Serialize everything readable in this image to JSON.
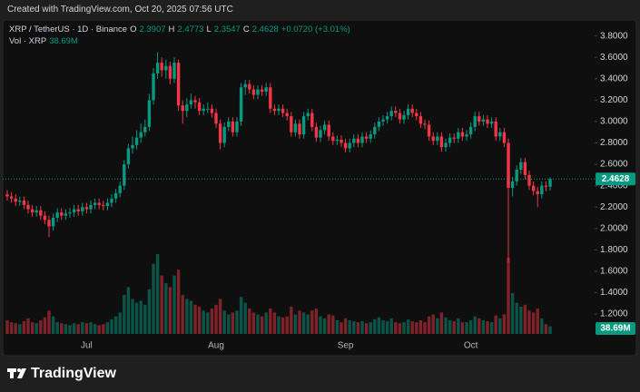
{
  "watermark": "Created with TradingView.com, Oct 20, 2025 07:56 UTC",
  "logo": "TradingView",
  "chart_data": {
    "type": "candlestick",
    "symbol": "XRP / TetherUS · 1D · Binance",
    "ohlc_labels": [
      "O",
      "H",
      "L",
      "C"
    ],
    "change": "+0.0720 (+3.01%)",
    "volume_title": "Vol · XRP",
    "volume_label": "38.69M",
    "up_color": "#089981",
    "down_color": "#f23645",
    "grid": false,
    "ylim": [
      0.98,
      3.95
    ],
    "yticks": [
      {
        "value": 3.8,
        "label": "3.8000"
      },
      {
        "value": 3.6,
        "label": "3.6000"
      },
      {
        "value": 3.4,
        "label": "3.4000"
      },
      {
        "value": 3.2,
        "label": "3.2000"
      },
      {
        "value": 3.0,
        "label": "3.0000"
      },
      {
        "value": 2.8,
        "label": "2.8000"
      },
      {
        "value": 2.6,
        "label": "2.6000"
      },
      {
        "value": 2.4,
        "label": "2.4000"
      },
      {
        "value": 2.2,
        "label": "2.2000"
      },
      {
        "value": 2.0,
        "label": "2.0000"
      },
      {
        "value": 1.8,
        "label": "1.8000"
      },
      {
        "value": 1.6,
        "label": "1.6000"
      },
      {
        "value": 1.4,
        "label": "1.4000"
      },
      {
        "value": 1.2,
        "label": "1.2000"
      }
    ],
    "categories": [
      null,
      null,
      null,
      null,
      null,
      null,
      null,
      null,
      null,
      null,
      null,
      null,
      null,
      null,
      null,
      null,
      null,
      null,
      null,
      "Jul",
      null,
      null,
      null,
      null,
      null,
      null,
      null,
      null,
      null,
      null,
      null,
      null,
      null,
      null,
      null,
      null,
      null,
      null,
      null,
      null,
      null,
      null,
      null,
      null,
      null,
      null,
      null,
      null,
      null,
      null,
      "Aug",
      null,
      null,
      null,
      null,
      null,
      null,
      null,
      null,
      null,
      null,
      null,
      null,
      null,
      null,
      null,
      null,
      null,
      null,
      null,
      null,
      null,
      null,
      null,
      null,
      null,
      null,
      null,
      null,
      null,
      null,
      "Sep",
      null,
      null,
      null,
      null,
      null,
      null,
      null,
      null,
      null,
      null,
      null,
      null,
      null,
      null,
      null,
      null,
      null,
      null,
      null,
      null,
      null,
      null,
      null,
      null,
      null,
      null,
      null,
      null,
      null,
      "Oct",
      null,
      null,
      null,
      null,
      null,
      null,
      null,
      null,
      null,
      null,
      null,
      null,
      null,
      null,
      null,
      null,
      null,
      null,
      null
    ],
    "open": [
      2.32,
      2.3,
      2.28,
      2.25,
      2.26,
      2.22,
      2.18,
      2.15,
      2.17,
      2.12,
      2.08,
      2.02,
      2.1,
      2.15,
      2.12,
      2.14,
      2.15,
      2.18,
      2.16,
      2.2,
      2.18,
      2.22,
      2.24,
      2.22,
      2.21,
      2.24,
      2.28,
      2.33,
      2.4,
      2.6,
      2.75,
      2.78,
      2.85,
      2.9,
      2.95,
      3.2,
      3.45,
      3.55,
      3.48,
      3.52,
      3.4,
      3.55,
      3.15,
      3.1,
      3.16,
      3.2,
      3.18,
      3.1,
      3.12,
      3.12,
      3.08,
      2.98,
      2.8,
      2.95,
      3.0,
      2.9,
      3.0,
      3.32,
      3.35,
      3.3,
      3.25,
      3.3,
      3.28,
      3.32,
      3.12,
      3.1,
      3.12,
      3.08,
      3.05,
      2.9,
      2.98,
      2.88,
      3.05,
      3.08,
      2.95,
      2.85,
      2.92,
      2.97,
      2.86,
      2.82,
      2.83,
      2.8,
      2.75,
      2.8,
      2.84,
      2.8,
      2.86,
      2.84,
      2.88,
      2.95,
      3.0,
      3.02,
      3.05,
      3.1,
      3.08,
      3.02,
      3.06,
      3.12,
      3.08,
      3.05,
      2.98,
      2.97,
      2.86,
      2.82,
      2.86,
      2.76,
      2.8,
      2.85,
      2.84,
      2.9,
      2.86,
      2.88,
      2.95,
      3.05,
      3.0,
      3.02,
      2.98,
      3.0,
      2.86,
      2.9,
      2.8,
      2.38,
      2.44,
      2.55,
      2.62,
      2.5,
      2.4,
      2.35,
      2.32,
      2.4,
      2.3907
    ],
    "high": [
      2.36,
      2.34,
      2.32,
      2.3,
      2.3,
      2.26,
      2.22,
      2.21,
      2.21,
      2.16,
      2.12,
      2.14,
      2.19,
      2.19,
      2.18,
      2.19,
      2.22,
      2.22,
      2.24,
      2.24,
      2.26,
      2.28,
      2.28,
      2.26,
      2.28,
      2.32,
      2.37,
      2.44,
      2.64,
      2.79,
      2.86,
      2.92,
      2.98,
      3.02,
      3.26,
      3.5,
      3.65,
      3.6,
      3.58,
      3.56,
      3.6,
      3.58,
      3.2,
      3.22,
      3.26,
      3.24,
      3.22,
      3.16,
      3.18,
      3.16,
      3.12,
      3.02,
      2.99,
      3.04,
      3.04,
      3.04,
      3.36,
      3.39,
      3.39,
      3.34,
      3.34,
      3.34,
      3.36,
      3.36,
      3.16,
      3.16,
      3.16,
      3.12,
      3.09,
      3.02,
      3.02,
      3.09,
      3.12,
      3.12,
      2.99,
      2.96,
      3.01,
      3.01,
      2.9,
      2.87,
      2.87,
      2.84,
      2.84,
      2.88,
      2.88,
      2.9,
      2.9,
      2.92,
      2.99,
      3.04,
      3.06,
      3.09,
      3.14,
      3.14,
      3.12,
      3.1,
      3.16,
      3.16,
      3.12,
      3.09,
      3.02,
      3.01,
      2.9,
      2.9,
      2.9,
      2.84,
      2.89,
      2.89,
      2.94,
      2.94,
      2.92,
      2.99,
      3.09,
      3.09,
      3.06,
      3.06,
      3.04,
      3.04,
      2.94,
      2.94,
      2.84,
      2.48,
      2.59,
      2.66,
      2.66,
      2.54,
      2.44,
      2.39,
      2.44,
      2.44,
      2.4773
    ],
    "low": [
      2.26,
      2.24,
      2.21,
      2.21,
      2.18,
      2.14,
      2.11,
      2.11,
      2.08,
      2.04,
      1.92,
      1.98,
      2.06,
      2.08,
      2.08,
      2.1,
      2.11,
      2.12,
      2.12,
      2.14,
      2.14,
      2.18,
      2.18,
      2.17,
      2.17,
      2.2,
      2.24,
      2.29,
      2.36,
      2.56,
      2.7,
      2.74,
      2.8,
      2.86,
      2.91,
      3.16,
      3.4,
      3.42,
      3.4,
      3.35,
      3.36,
      3.1,
      2.98,
      3.04,
      3.12,
      3.12,
      3.06,
      3.06,
      3.08,
      3.04,
      2.94,
      2.74,
      2.76,
      2.91,
      2.86,
      2.86,
      2.96,
      3.25,
      3.26,
      3.21,
      3.21,
      3.24,
      3.24,
      3.08,
      3.06,
      3.06,
      3.04,
      3.01,
      2.86,
      2.86,
      2.84,
      2.84,
      3.01,
      2.91,
      2.81,
      2.81,
      2.88,
      2.82,
      2.78,
      2.78,
      2.76,
      2.71,
      2.71,
      2.76,
      2.76,
      2.76,
      2.8,
      2.8,
      2.84,
      2.91,
      2.96,
      2.98,
      3.01,
      3.04,
      2.98,
      2.98,
      3.02,
      3.04,
      3.01,
      2.94,
      2.93,
      2.82,
      2.78,
      2.78,
      2.72,
      2.72,
      2.76,
      2.8,
      2.8,
      2.82,
      2.82,
      2.84,
      2.91,
      2.96,
      2.96,
      2.94,
      2.94,
      2.82,
      2.82,
      2.76,
      1.68,
      2.3,
      2.4,
      2.51,
      2.46,
      2.36,
      2.31,
      2.2,
      2.28,
      2.35,
      2.3547
    ],
    "close": [
      2.3,
      2.28,
      2.25,
      2.26,
      2.22,
      2.18,
      2.15,
      2.17,
      2.12,
      2.08,
      2.02,
      2.1,
      2.15,
      2.12,
      2.14,
      2.15,
      2.18,
      2.16,
      2.2,
      2.18,
      2.22,
      2.24,
      2.22,
      2.21,
      2.24,
      2.28,
      2.33,
      2.4,
      2.6,
      2.75,
      2.78,
      2.85,
      2.9,
      2.95,
      3.2,
      3.45,
      3.55,
      3.48,
      3.52,
      3.4,
      3.55,
      3.15,
      3.1,
      3.16,
      3.2,
      3.18,
      3.1,
      3.12,
      3.12,
      3.08,
      2.98,
      2.8,
      2.95,
      3.0,
      2.9,
      3.0,
      3.32,
      3.35,
      3.3,
      3.25,
      3.3,
      3.28,
      3.32,
      3.12,
      3.1,
      3.12,
      3.08,
      3.05,
      2.9,
      2.98,
      2.88,
      3.05,
      3.08,
      2.95,
      2.85,
      2.92,
      2.97,
      2.86,
      2.82,
      2.83,
      2.8,
      2.75,
      2.8,
      2.84,
      2.8,
      2.86,
      2.84,
      2.88,
      2.95,
      3.0,
      3.02,
      3.05,
      3.1,
      3.08,
      3.02,
      3.06,
      3.12,
      3.08,
      3.05,
      2.98,
      2.97,
      2.86,
      2.82,
      2.86,
      2.76,
      2.8,
      2.85,
      2.84,
      2.9,
      2.86,
      2.88,
      2.95,
      3.05,
      3.0,
      3.02,
      2.98,
      3.0,
      2.86,
      2.9,
      2.8,
      2.38,
      2.44,
      2.55,
      2.62,
      2.5,
      2.4,
      2.35,
      2.32,
      2.4,
      2.39,
      2.4628
    ],
    "volume": [
      70,
      60,
      55,
      50,
      65,
      80,
      60,
      55,
      70,
      85,
      120,
      90,
      60,
      55,
      50,
      45,
      55,
      50,
      60,
      55,
      60,
      50,
      45,
      50,
      60,
      75,
      90,
      110,
      200,
      240,
      180,
      160,
      170,
      150,
      230,
      360,
      410,
      300,
      260,
      240,
      300,
      330,
      200,
      180,
      170,
      150,
      140,
      120,
      110,
      130,
      150,
      180,
      120,
      100,
      110,
      120,
      190,
      160,
      130,
      110,
      100,
      90,
      110,
      130,
      110,
      90,
      85,
      90,
      140,
      100,
      120,
      110,
      100,
      120,
      130,
      90,
      80,
      100,
      95,
      70,
      60,
      80,
      70,
      65,
      60,
      65,
      55,
      60,
      75,
      85,
      70,
      65,
      80,
      60,
      55,
      60,
      75,
      65,
      60,
      70,
      60,
      90,
      100,
      80,
      110,
      85,
      70,
      65,
      80,
      60,
      60,
      70,
      90,
      80,
      70,
      65,
      60,
      95,
      80,
      100,
      390,
      210,
      160,
      140,
      150,
      120,
      110,
      130,
      80,
      50,
      38.69
    ]
  }
}
